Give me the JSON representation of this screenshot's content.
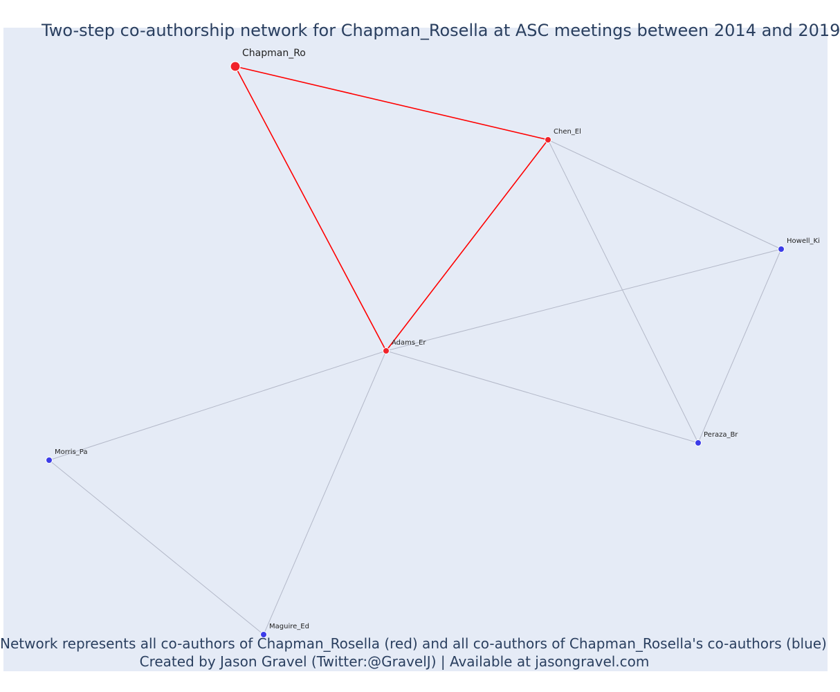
{
  "title": "Two-step co-authorship network for Chapman_Rosella at ASC meetings between 2014 and 2019",
  "footer": {
    "line1": "Network represents all co-authors of Chapman_Rosella (red) and all co-authors of Chapman_Rosella's co-authors (blue)",
    "line2": "Created by Jason Gravel (Twitter:@GravelJ) | Available at jasongravel.com"
  },
  "colors": {
    "background": "#e5ebf6",
    "first_step": "#f0232a",
    "second_step": "#3c3ce8",
    "first_step_edge": "#ff0000",
    "second_step_edge": "#b3b8c8",
    "text": "#2a3f5f"
  },
  "network": {
    "nodes": [
      {
        "id": "Chapman_Ro",
        "label": "Chapman_Ro",
        "group": "focal"
      },
      {
        "id": "Chen_El",
        "label": "Chen_El",
        "group": "first_step"
      },
      {
        "id": "Adams_Er",
        "label": "Adams_Er",
        "group": "first_step"
      },
      {
        "id": "Howell_Ki",
        "label": "Howell_Ki",
        "group": "second_step"
      },
      {
        "id": "Peraza_Br",
        "label": "Peraza_Br",
        "group": "second_step"
      },
      {
        "id": "Morris_Pa",
        "label": "Morris_Pa",
        "group": "second_step"
      },
      {
        "id": "Maguire_Ed",
        "label": "Maguire_Ed",
        "group": "second_step"
      }
    ],
    "edges": [
      {
        "source": "Chapman_Ro",
        "target": "Chen_El",
        "type": "first_step"
      },
      {
        "source": "Chapman_Ro",
        "target": "Adams_Er",
        "type": "first_step"
      },
      {
        "source": "Chen_El",
        "target": "Adams_Er",
        "type": "first_step"
      },
      {
        "source": "Chen_El",
        "target": "Howell_Ki",
        "type": "second_step"
      },
      {
        "source": "Chen_El",
        "target": "Peraza_Br",
        "type": "second_step"
      },
      {
        "source": "Adams_Er",
        "target": "Howell_Ki",
        "type": "second_step"
      },
      {
        "source": "Adams_Er",
        "target": "Peraza_Br",
        "type": "second_step"
      },
      {
        "source": "Adams_Er",
        "target": "Morris_Pa",
        "type": "second_step"
      },
      {
        "source": "Adams_Er",
        "target": "Maguire_Ed",
        "type": "second_step"
      },
      {
        "source": "Howell_Ki",
        "target": "Peraza_Br",
        "type": "second_step"
      },
      {
        "source": "Morris_Pa",
        "target": "Maguire_Ed",
        "type": "second_step"
      }
    ]
  }
}
